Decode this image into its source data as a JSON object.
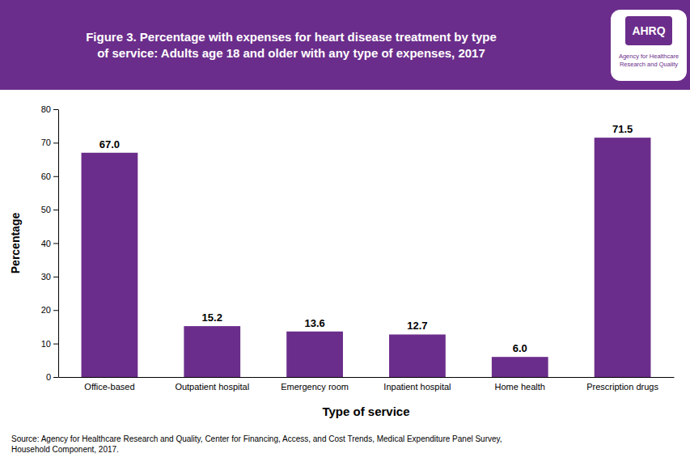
{
  "chart_data": {
    "type": "bar",
    "title": "Figure 3. Percentage with expenses for heart disease treatment by type\nof service: Adults age 18 and older with any type of expenses, 2017",
    "annotations": [
      "AHRQ",
      "Agency for Healthcare\nResearch and Quality",
      "Source: Agency for Healthcare Research and Quality, Center for Financing, Access, and Cost Trends, Medical Expenditure Panel Survey,\nHousehold Component, 2017."
    ],
    "x_label": "Type of service",
    "y_label": "Percentage",
    "categories": [
      "Office-based",
      "Outpatient hospital",
      "Emergency room",
      "Inpatient hospital",
      "Home health",
      "Prescription drugs"
    ],
    "values": [
      67.0,
      15.2,
      13.6,
      12.7,
      6.0,
      71.5
    ],
    "value_labels": [
      "67.0",
      "15.2",
      "13.6",
      "12.7",
      "6.0",
      "71.5"
    ],
    "data_labels": true,
    "color": "#6B2D8B",
    "ylim": [
      0,
      80
    ],
    "yticks": [
      0,
      10,
      20,
      30,
      40,
      50,
      60,
      70,
      80
    ],
    "grid": false
  }
}
